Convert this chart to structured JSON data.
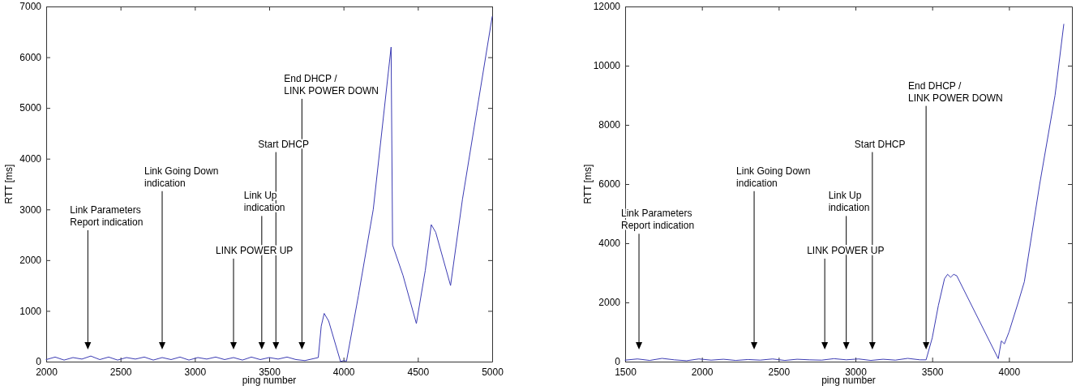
{
  "chart_data": [
    {
      "type": "line",
      "xlabel": "ping number",
      "ylabel": "RTT [ms]",
      "xlim": [
        2000,
        5000
      ],
      "xticks": [
        2000,
        2500,
        3000,
        3500,
        4000,
        4500,
        5000
      ],
      "ylim": [
        0,
        7000
      ],
      "yticks": [
        0,
        1000,
        2000,
        3000,
        4000,
        5000,
        6000,
        7000
      ],
      "grid": false,
      "marker": "none",
      "line_style": "solid",
      "series": [
        {
          "color": "#3b3bb3",
          "x": [
            2000,
            2060,
            2120,
            2180,
            2240,
            2300,
            2360,
            2420,
            2480,
            2540,
            2600,
            2660,
            2720,
            2780,
            2840,
            2900,
            2960,
            3020,
            3080,
            3140,
            3200,
            3260,
            3320,
            3380,
            3440,
            3500,
            3560,
            3620,
            3680,
            3740,
            3830,
            3850,
            3870,
            3900,
            3940,
            3980,
            4000,
            4020,
            4100,
            4200,
            4320,
            4330,
            4400,
            4490,
            4550,
            4590,
            4620,
            4720,
            4800,
            4900,
            5000
          ],
          "values": [
            40,
            90,
            30,
            80,
            50,
            110,
            40,
            90,
            30,
            80,
            50,
            90,
            30,
            80,
            40,
            90,
            30,
            80,
            50,
            90,
            40,
            80,
            30,
            90,
            40,
            80,
            50,
            90,
            40,
            20,
            80,
            700,
            950,
            800,
            400,
            0,
            20,
            10,
            1300,
            3000,
            6200,
            2300,
            1700,
            750,
            1800,
            2700,
            2550,
            1500,
            3200,
            5000,
            6800
          ]
        }
      ],
      "ref_lines": [
        {
          "axis": "x",
          "value": 2280,
          "label": "Link Parameters\nReport indication"
        },
        {
          "axis": "x",
          "value": 2780,
          "label": "Link Going Down\nindication"
        },
        {
          "axis": "x",
          "value": 3260,
          "label": "LINK POWER UP"
        },
        {
          "axis": "x",
          "value": 3450,
          "label": "Link Up\nindication"
        },
        {
          "axis": "x",
          "value": 3545,
          "label": "Start DHCP"
        },
        {
          "axis": "x",
          "value": 3720,
          "label": "End DHCP /\nLINK POWER DOWN"
        }
      ]
    },
    {
      "type": "line",
      "xlabel": "ping number",
      "ylabel": "RTT [ms]",
      "xlim": [
        1500,
        4410
      ],
      "xticks": [
        1500,
        2000,
        2500,
        3000,
        3500,
        4000
      ],
      "ylim": [
        0,
        12000
      ],
      "yticks": [
        0,
        2000,
        4000,
        6000,
        8000,
        10000,
        12000
      ],
      "grid": false,
      "marker": "none",
      "line_style": "solid",
      "series": [
        {
          "color": "#3b3bb3",
          "x": [
            1500,
            1580,
            1660,
            1740,
            1820,
            1900,
            1980,
            2060,
            2140,
            2220,
            2300,
            2380,
            2460,
            2540,
            2620,
            2700,
            2780,
            2860,
            2940,
            3020,
            3100,
            3180,
            3260,
            3340,
            3420,
            3460,
            3500,
            3540,
            3580,
            3600,
            3620,
            3640,
            3660,
            3930,
            3950,
            3970,
            4000,
            4060,
            4100,
            4200,
            4300,
            4357
          ],
          "values": [
            50,
            90,
            40,
            110,
            60,
            30,
            90,
            50,
            80,
            40,
            70,
            50,
            90,
            40,
            80,
            60,
            50,
            100,
            60,
            90,
            40,
            80,
            50,
            110,
            60,
            60,
            800,
            1900,
            2800,
            2950,
            2850,
            2950,
            2900,
            100,
            700,
            600,
            1000,
            2000,
            2700,
            6000,
            9000,
            11400
          ]
        }
      ],
      "ref_lines": [
        {
          "axis": "x",
          "value": 1590,
          "label": "Link Parameters\nReport indication"
        },
        {
          "axis": "x",
          "value": 2340,
          "label": "Link Going Down\nindication"
        },
        {
          "axis": "x",
          "value": 2800,
          "label": "LINK POWER UP"
        },
        {
          "axis": "x",
          "value": 2940,
          "label": "Link Up\nindication"
        },
        {
          "axis": "x",
          "value": 3110,
          "label": "Start DHCP"
        },
        {
          "axis": "x",
          "value": 3460,
          "label": "End DHCP /\nLINK POWER DOWN"
        }
      ]
    }
  ]
}
